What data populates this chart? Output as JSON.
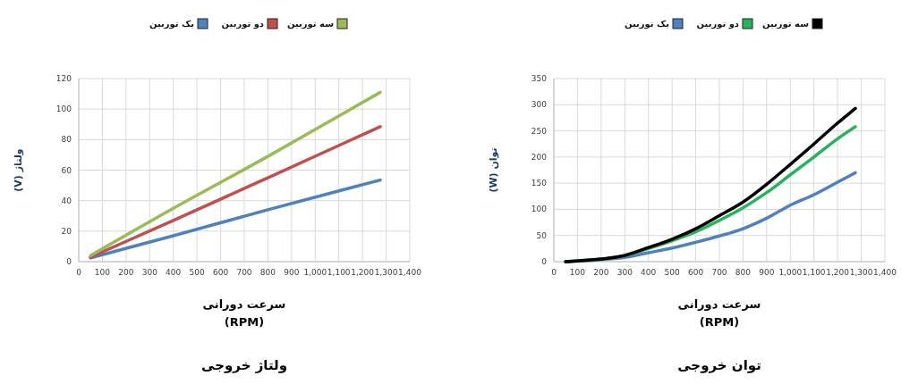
{
  "chart_data": [
    {
      "type": "line",
      "title": "ولتاژ خروجی",
      "xlabel": "سرعت دورانی\n(RPM)",
      "ylabel": "ولتاژ (V)",
      "x": [
        50,
        400,
        800,
        1275
      ],
      "series": [
        {
          "name": "یک توربین",
          "color": "#4f81bd",
          "values": [
            2.5,
            17,
            34,
            53.5
          ]
        },
        {
          "name": "دو توربین",
          "color": "#c0504d",
          "values": [
            3,
            27,
            55,
            88.5
          ]
        },
        {
          "name": "سه توربین",
          "color": "#9bbb59",
          "values": [
            4,
            35,
            69,
            111
          ]
        }
      ],
      "xlim": [
        0,
        1400
      ],
      "ylim": [
        0,
        120
      ],
      "xticks": [
        0,
        100,
        200,
        300,
        400,
        500,
        600,
        700,
        800,
        900,
        {
          "value": 1000,
          "label": "1,000"
        },
        {
          "value": 1100,
          "label": "1,100"
        },
        {
          "value": 1200,
          "label": "1,200"
        },
        {
          "value": 1300,
          "label": "1,300"
        },
        {
          "value": 1400,
          "label": "1,400"
        }
      ],
      "yticks": [
        0,
        20,
        40,
        60,
        80,
        100,
        120
      ],
      "grid": true,
      "legend": "top"
    },
    {
      "type": "line",
      "title": "توان خروجی",
      "xlabel": "سرعت دورانی\n(RPM)",
      "ylabel": "توان (W)",
      "x": [
        50,
        200,
        300,
        400,
        500,
        600,
        700,
        800,
        900,
        1000,
        1100,
        1200,
        1275
      ],
      "series": [
        {
          "name": "یک توربین",
          "color": "#4f81bd",
          "values": [
            0,
            4,
            8,
            17,
            26,
            37,
            49,
            63,
            83,
            108,
            128,
            152,
            170
          ]
        },
        {
          "name": "دو توربین",
          "color": "#27b35a",
          "values": [
            0,
            5,
            11,
            25,
            40,
            57,
            79,
            103,
            132,
            166,
            200,
            235,
            258
          ]
        },
        {
          "name": "سه توربین",
          "color": "#000000",
          "values": [
            0,
            5,
            12,
            27,
            43,
            63,
            88,
            114,
            148,
            186,
            225,
            265,
            293
          ]
        }
      ],
      "xlim": [
        0,
        1400
      ],
      "ylim": [
        0,
        350
      ],
      "xticks": [
        0,
        100,
        200,
        300,
        400,
        500,
        600,
        700,
        800,
        900,
        {
          "value": 1000,
          "label": "1,000"
        },
        {
          "value": 1100,
          "label": "1,100"
        },
        {
          "value": 1200,
          "label": "1,200"
        },
        {
          "value": 1300,
          "label": "1,300"
        },
        {
          "value": 1400,
          "label": "1,400"
        }
      ],
      "yticks": [
        0,
        50,
        100,
        150,
        200,
        250,
        300,
        350
      ],
      "grid": true,
      "legend": "top"
    }
  ]
}
